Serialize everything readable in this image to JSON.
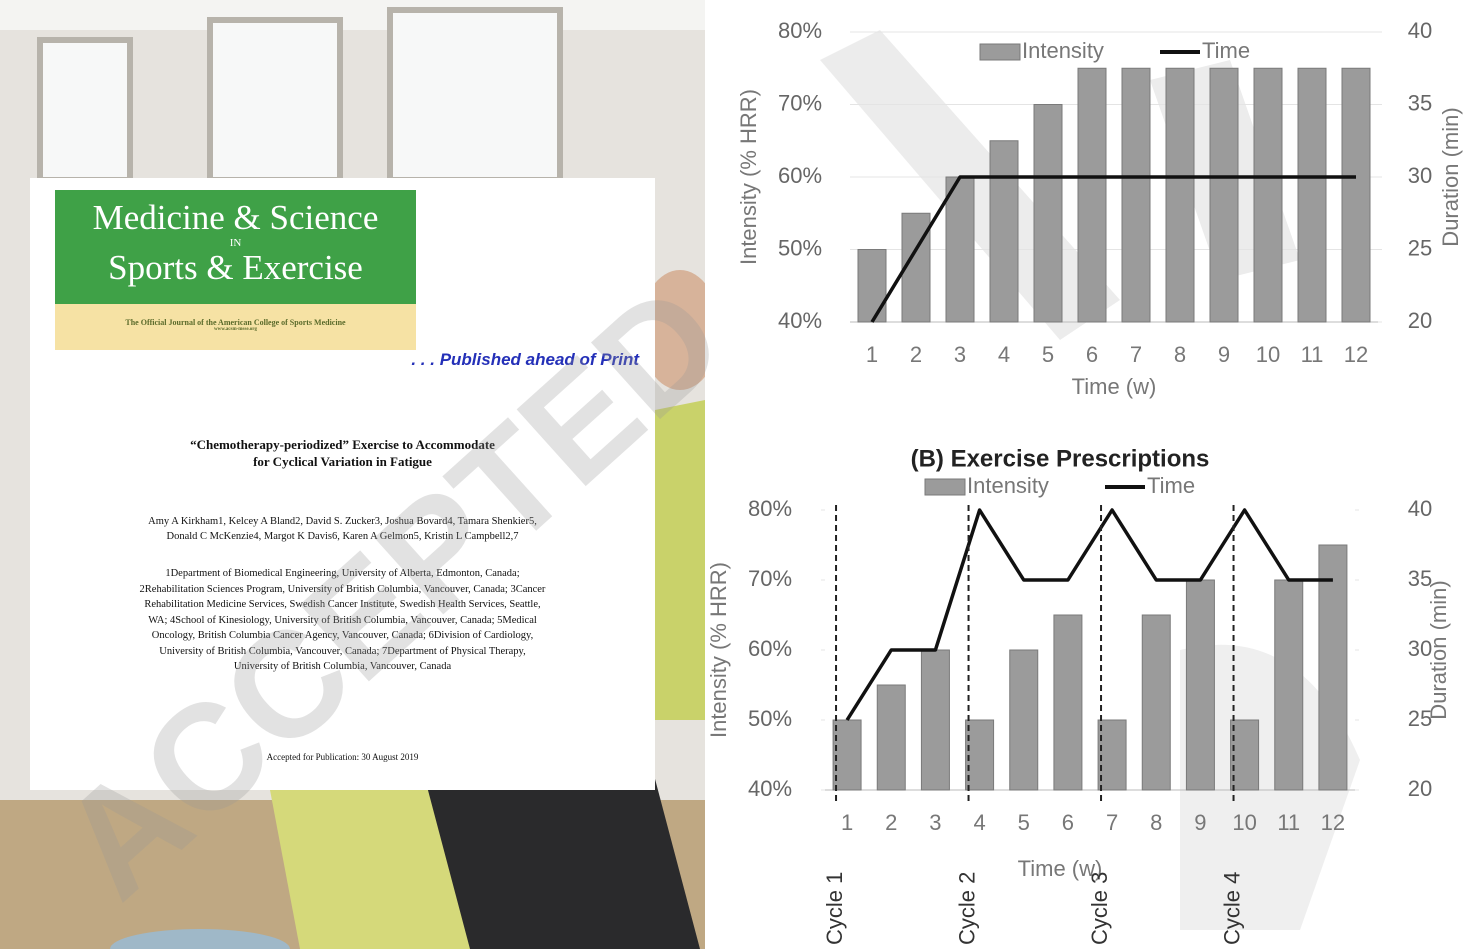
{
  "document": {
    "journal": {
      "line1": "Medicine & Science",
      "line2": "IN",
      "line3": "Sports & Exercise",
      "tagline": "The Official Journal of the American College of Sports Medicine",
      "url": "www.acsm-msse.org"
    },
    "status": ". . . Published ahead of Print",
    "title": [
      "“Chemotherapy-periodized” Exercise to Accommodate",
      "for Cyclical Variation in Fatigue"
    ],
    "authors": [
      "Amy A Kirkham1, Kelcey A Bland2, David S. Zucker3, Joshua Bovard4, Tamara Shenkier5,",
      "Donald C McKenzie4, Margot K Davis6, Karen A Gelmon5, Kristin L Campbell2,7"
    ],
    "affiliations": [
      "1Department of Biomedical Engineering, University of Alberta, Edmonton, Canada;",
      "2Rehabilitation Sciences Program, University of British Columbia, Vancouver, Canada; 3Cancer",
      "Rehabilitation Medicine Services, Swedish Cancer Institute, Swedish Health Services, Seattle,",
      "WA; 4School of Kinesiology, University of British Columbia, Vancouver, Canada; 5Medical",
      "Oncology, British Columbia Cancer Agency, Vancouver, Canada; 6Division of Cardiology,",
      "University of British Columbia, Vancouver, Canada; 7Department of Physical Therapy,",
      "University of British Columbia, Vancouver, Canada"
    ],
    "accepted": "Accepted for Publication: 30 August 2019",
    "watermark": "ACCEPTED"
  },
  "chart_data": [
    {
      "type": "bar",
      "x_label": "Time (w)",
      "y_label": "Intensity (% HRR)",
      "y2_label": "Duration (min)",
      "categories": [
        "1",
        "2",
        "3",
        "4",
        "5",
        "6",
        "7",
        "8",
        "9",
        "10",
        "11",
        "12"
      ],
      "series": [
        {
          "name": "Intensity",
          "type": "bar",
          "color": "#9b9b9b",
          "values": [
            50,
            55,
            60,
            65,
            70,
            75,
            75,
            75,
            75,
            75,
            75,
            75
          ]
        },
        {
          "name": "Time",
          "type": "line",
          "color": "#111111",
          "axis": "y2",
          "values": [
            20,
            25,
            30,
            30,
            30,
            30,
            30,
            30,
            30,
            30,
            30,
            30
          ]
        }
      ],
      "ylim": [
        40,
        80
      ],
      "yticks": [
        {
          "value": 40,
          "label": "40%"
        },
        {
          "value": 50,
          "label": "50%"
        },
        {
          "value": 60,
          "label": "60%"
        },
        {
          "value": 70,
          "label": "70%"
        },
        {
          "value": 80,
          "label": "80%"
        }
      ],
      "y2lim": [
        20,
        40
      ],
      "y2ticks": [
        20,
        25,
        30,
        35,
        40
      ],
      "grid": true
    },
    {
      "type": "bar",
      "title": "(B) Exercise Prescriptions",
      "x_label": "Time (w)",
      "y_label": "Intensity (% HRR)",
      "y2_label": "Duration (min)",
      "categories": [
        "1",
        "2",
        "3",
        "4",
        "5",
        "6",
        "7",
        "8",
        "9",
        "10",
        "11",
        "12"
      ],
      "series": [
        {
          "name": "Intensity",
          "type": "bar",
          "color": "#9b9b9b",
          "values": [
            50,
            55,
            60,
            50,
            60,
            65,
            50,
            65,
            70,
            50,
            70,
            75
          ]
        },
        {
          "name": "Time",
          "type": "line",
          "color": "#111111",
          "axis": "y2",
          "values": [
            25,
            30,
            30,
            40,
            35,
            35,
            40,
            35,
            35,
            40,
            35,
            35
          ]
        }
      ],
      "ylim": [
        40,
        80
      ],
      "yticks": [
        {
          "value": 40,
          "label": "40%"
        },
        {
          "value": 50,
          "label": "50%"
        },
        {
          "value": 60,
          "label": "60%"
        },
        {
          "value": 70,
          "label": "70%"
        },
        {
          "value": 80,
          "label": "80%"
        }
      ],
      "y2lim": [
        20,
        40
      ],
      "y2ticks": [
        20,
        25,
        30,
        35,
        40
      ],
      "grid": false,
      "annotations": [
        {
          "text": "Cycle 1",
          "x": 1
        },
        {
          "text": "Cycle 2",
          "x": 4
        },
        {
          "text": "Cycle 3",
          "x": 7
        },
        {
          "text": "Cycle 4",
          "x": 10
        }
      ]
    }
  ]
}
